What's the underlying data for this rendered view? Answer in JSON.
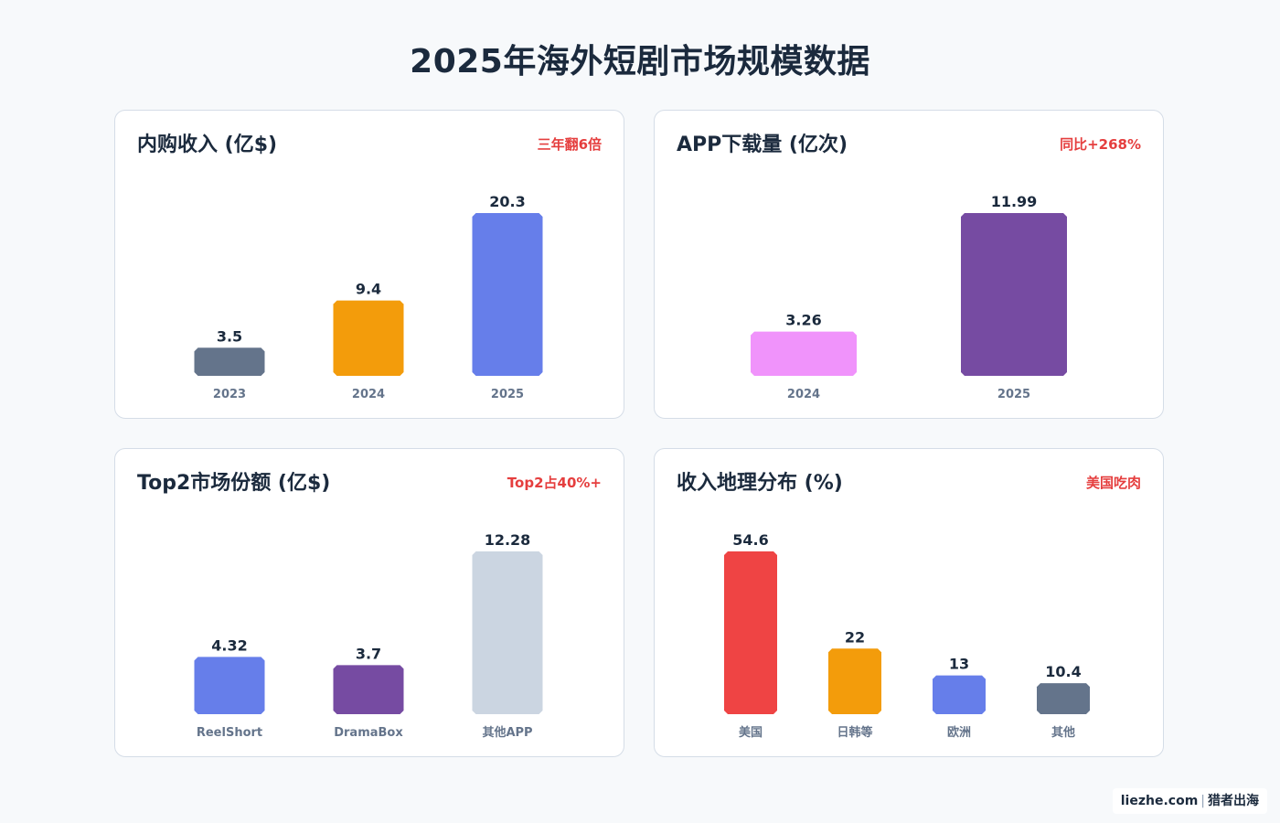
{
  "page": {
    "title": "2025年海外短剧市场规模数据"
  },
  "chart_data": [
    {
      "type": "bar",
      "title": "内购收入 (亿$)",
      "badge": "三年翻6倍",
      "categories": [
        "2023",
        "2024",
        "2025"
      ],
      "values": [
        3.5,
        9.4,
        20.3
      ],
      "value_labels": [
        "3.5",
        "9.4",
        "20.3"
      ],
      "colors": [
        "#64748b",
        "#f39c0b",
        "#667eea"
      ],
      "ylim": [
        0,
        20.3
      ]
    },
    {
      "type": "bar",
      "title": "APP下载量 (亿次)",
      "badge": "同比+268%",
      "categories": [
        "2024",
        "2025"
      ],
      "values": [
        3.26,
        11.99
      ],
      "value_labels": [
        "3.26",
        "11.99"
      ],
      "colors": [
        "#f093fb",
        "#764ba2"
      ],
      "ylim": [
        0,
        11.99
      ]
    },
    {
      "type": "bar",
      "title": "Top2市场份额 (亿$)",
      "badge": "Top2占40%+",
      "categories": [
        "ReelShort",
        "DramaBox",
        "其他APP"
      ],
      "values": [
        4.32,
        3.7,
        12.28
      ],
      "value_labels": [
        "4.32",
        "3.7",
        "12.28"
      ],
      "colors": [
        "#667eea",
        "#764ba2",
        "#cbd5e1"
      ],
      "ylim": [
        0,
        12.28
      ]
    },
    {
      "type": "bar",
      "title": "收入地理分布 (%)",
      "badge": "美国吃肉",
      "categories": [
        "美国",
        "日韩等",
        "欧洲",
        "其他"
      ],
      "values": [
        54.6,
        22,
        13,
        10.4
      ],
      "value_labels": [
        "54.6",
        "22",
        "13",
        "10.4"
      ],
      "colors": [
        "#ef4444",
        "#f39c0b",
        "#667eea",
        "#64748b"
      ],
      "ylim": [
        0,
        54.6
      ]
    }
  ],
  "footer": {
    "site": "liezhe.com",
    "separator": "|",
    "brand": "猎者出海"
  }
}
